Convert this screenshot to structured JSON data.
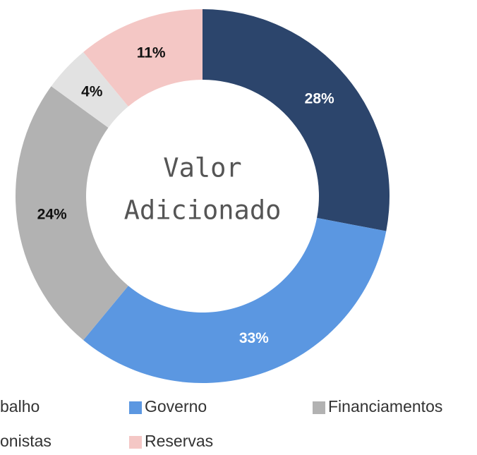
{
  "chart_data": {
    "type": "donut",
    "center_label": [
      "Valor",
      "Adicionado"
    ],
    "categories": [
      "balho",
      "Governo",
      "Financiamentos",
      "onistas",
      "Reservas"
    ],
    "values": [
      28,
      33,
      24,
      4,
      11
    ],
    "value_labels": [
      "28%",
      "33%",
      "24%",
      "4%",
      "11%"
    ],
    "colors": [
      "#2c456c",
      "#5b97e1",
      "#b2b2b2",
      "#e2e2e2",
      "#f4c7c5"
    ],
    "label_colors": [
      "#ffffff",
      "#ffffff",
      "#111111",
      "#111111",
      "#111111"
    ]
  }
}
